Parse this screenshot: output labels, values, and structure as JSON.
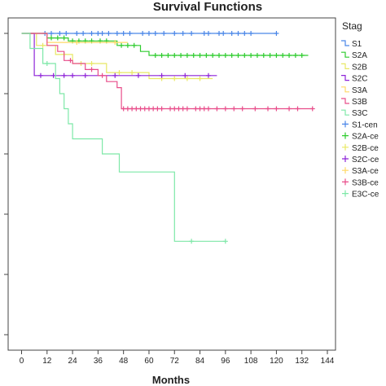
{
  "chart_data": {
    "type": "line",
    "title": "Survival Functions",
    "xlabel": "Months",
    "ylabel": "",
    "xlim": [
      0,
      144
    ],
    "ylim": [
      0,
      1
    ],
    "x_ticks": [
      0,
      12,
      24,
      36,
      48,
      60,
      72,
      84,
      96,
      108,
      120,
      132,
      144
    ],
    "y_ticks": [
      0,
      0.2,
      0.4,
      0.6,
      0.8,
      1.0
    ],
    "grid": false,
    "legend_title": "Stag",
    "legend_position": "right",
    "legend_entries": [
      "S1",
      "S2A",
      "S2B",
      "S2C",
      "S3A",
      "S3B",
      "S3C",
      "S1-cen",
      "S2A-ce",
      "S2B-ce",
      "S2C-ce",
      "S3A-ce",
      "S3B-ce",
      "E3C-ce"
    ],
    "series": [
      {
        "name": "S1",
        "color": "#4a86e8",
        "censor": "+",
        "steps": [
          [
            0,
            1.0
          ],
          [
            120,
            1.0
          ]
        ],
        "censored": [
          11,
          14,
          18,
          21,
          26,
          29,
          33,
          36,
          38,
          41,
          45,
          48,
          51,
          57,
          60,
          63,
          67,
          72,
          76,
          80,
          86,
          88,
          93,
          95,
          99,
          102,
          105,
          108,
          120
        ]
      },
      {
        "name": "S2A",
        "color": "#2ecc2e",
        "censor": "+",
        "steps": [
          [
            0,
            1.0
          ],
          [
            12,
            1.0
          ],
          [
            12,
            0.985
          ],
          [
            22,
            0.985
          ],
          [
            22,
            0.975
          ],
          [
            45,
            0.975
          ],
          [
            45,
            0.96
          ],
          [
            56,
            0.96
          ],
          [
            56,
            0.94
          ],
          [
            60,
            0.94
          ],
          [
            60,
            0.927
          ],
          [
            135,
            0.927
          ]
        ],
        "censored": [
          14,
          17,
          20,
          24,
          27,
          30,
          33,
          37,
          40,
          47,
          50,
          53,
          63,
          66,
          69,
          72,
          75,
          78,
          81,
          84,
          87,
          90,
          93,
          96,
          99,
          102,
          105,
          108,
          111,
          114,
          117,
          120,
          123,
          126,
          129,
          132
        ]
      },
      {
        "name": "S2B",
        "color": "#e8e864",
        "censor": "+",
        "steps": [
          [
            0,
            1.0
          ],
          [
            7,
            1.0
          ],
          [
            7,
            0.96
          ],
          [
            16,
            0.96
          ],
          [
            16,
            0.93
          ],
          [
            24,
            0.93
          ],
          [
            24,
            0.9
          ],
          [
            40,
            0.9
          ],
          [
            40,
            0.87
          ],
          [
            60,
            0.87
          ],
          [
            60,
            0.85
          ],
          [
            90,
            0.85
          ]
        ],
        "censored": [
          10,
          20,
          28,
          33,
          46,
          52,
          66,
          72,
          78,
          84
        ]
      },
      {
        "name": "S2C",
        "color": "#8e24d8",
        "censor": "+",
        "steps": [
          [
            0,
            1.0
          ],
          [
            6,
            1.0
          ],
          [
            6,
            0.86
          ],
          [
            92,
            0.86
          ]
        ],
        "censored": [
          9,
          15,
          20,
          24,
          30,
          44,
          55,
          66,
          77,
          88
        ]
      },
      {
        "name": "S3A",
        "color": "#ffd966",
        "censor": "+",
        "steps": [
          [
            0,
            1.0
          ],
          [
            12,
            1.0
          ],
          [
            12,
            0.97
          ],
          [
            50,
            0.97
          ]
        ],
        "censored": [
          26,
          44
        ]
      },
      {
        "name": "S3B",
        "color": "#e84d8a",
        "censor": "+",
        "steps": [
          [
            0,
            1.0
          ],
          [
            12,
            1.0
          ],
          [
            12,
            0.96
          ],
          [
            17,
            0.96
          ],
          [
            17,
            0.94
          ],
          [
            20,
            0.94
          ],
          [
            20,
            0.91
          ],
          [
            24,
            0.91
          ],
          [
            24,
            0.9
          ],
          [
            30,
            0.9
          ],
          [
            30,
            0.88
          ],
          [
            36,
            0.88
          ],
          [
            36,
            0.86
          ],
          [
            40,
            0.86
          ],
          [
            40,
            0.84
          ],
          [
            45,
            0.84
          ],
          [
            45,
            0.82
          ],
          [
            47,
            0.82
          ],
          [
            47,
            0.75
          ],
          [
            137,
            0.75
          ]
        ],
        "censored": [
          23,
          33,
          38,
          48,
          50,
          52,
          54,
          56,
          58,
          60,
          62,
          64,
          66,
          70,
          72,
          74,
          76,
          78,
          82,
          84,
          86,
          88,
          92,
          96,
          100,
          104,
          110,
          116,
          120,
          126,
          130,
          137
        ]
      },
      {
        "name": "S3C",
        "color": "#7ee8a8",
        "censor": "+",
        "steps": [
          [
            0,
            1.0
          ],
          [
            4,
            1.0
          ],
          [
            4,
            0.95
          ],
          [
            10,
            0.95
          ],
          [
            10,
            0.9
          ],
          [
            16,
            0.9
          ],
          [
            16,
            0.85
          ],
          [
            18,
            0.85
          ],
          [
            18,
            0.8
          ],
          [
            20,
            0.8
          ],
          [
            20,
            0.75
          ],
          [
            22,
            0.75
          ],
          [
            22,
            0.7
          ],
          [
            24,
            0.7
          ],
          [
            24,
            0.65
          ],
          [
            38,
            0.65
          ],
          [
            38,
            0.6
          ],
          [
            46,
            0.6
          ],
          [
            46,
            0.54
          ],
          [
            72,
            0.54
          ],
          [
            72,
            0.31
          ],
          [
            96,
            0.31
          ]
        ],
        "censored": [
          12,
          80,
          96
        ]
      }
    ]
  }
}
